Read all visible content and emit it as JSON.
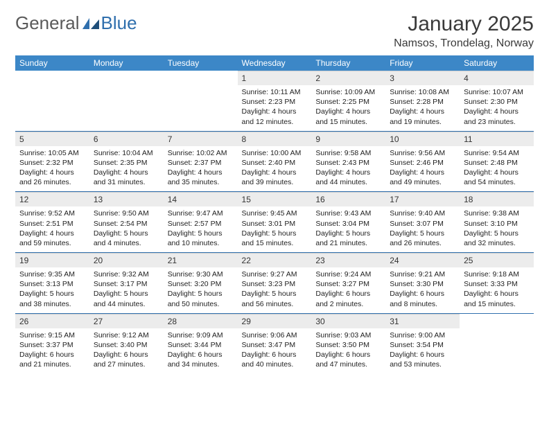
{
  "brand": {
    "word1": "General",
    "word2": "Blue"
  },
  "title": "January 2025",
  "location": "Namsos, Trondelag, Norway",
  "colors": {
    "header_bg": "#3c87c7",
    "header_text": "#ffffff",
    "rule": "#2f6fad",
    "daynum_bg": "#ececec",
    "text": "#333333"
  },
  "typography": {
    "title_fontsize": 30,
    "subtitle_fontsize": 16,
    "header_fontsize": 12,
    "cell_fontsize": 10.5
  },
  "week_header": [
    "Sunday",
    "Monday",
    "Tuesday",
    "Wednesday",
    "Thursday",
    "Friday",
    "Saturday"
  ],
  "weeks": [
    [
      {
        "empty": true
      },
      {
        "empty": true
      },
      {
        "empty": true
      },
      {
        "day": "1",
        "sunrise": "Sunrise: 10:11 AM",
        "sunset": "Sunset: 2:23 PM",
        "dl1": "Daylight: 4 hours",
        "dl2": "and 12 minutes."
      },
      {
        "day": "2",
        "sunrise": "Sunrise: 10:09 AM",
        "sunset": "Sunset: 2:25 PM",
        "dl1": "Daylight: 4 hours",
        "dl2": "and 15 minutes."
      },
      {
        "day": "3",
        "sunrise": "Sunrise: 10:08 AM",
        "sunset": "Sunset: 2:28 PM",
        "dl1": "Daylight: 4 hours",
        "dl2": "and 19 minutes."
      },
      {
        "day": "4",
        "sunrise": "Sunrise: 10:07 AM",
        "sunset": "Sunset: 2:30 PM",
        "dl1": "Daylight: 4 hours",
        "dl2": "and 23 minutes."
      }
    ],
    [
      {
        "day": "5",
        "sunrise": "Sunrise: 10:05 AM",
        "sunset": "Sunset: 2:32 PM",
        "dl1": "Daylight: 4 hours",
        "dl2": "and 26 minutes."
      },
      {
        "day": "6",
        "sunrise": "Sunrise: 10:04 AM",
        "sunset": "Sunset: 2:35 PM",
        "dl1": "Daylight: 4 hours",
        "dl2": "and 31 minutes."
      },
      {
        "day": "7",
        "sunrise": "Sunrise: 10:02 AM",
        "sunset": "Sunset: 2:37 PM",
        "dl1": "Daylight: 4 hours",
        "dl2": "and 35 minutes."
      },
      {
        "day": "8",
        "sunrise": "Sunrise: 10:00 AM",
        "sunset": "Sunset: 2:40 PM",
        "dl1": "Daylight: 4 hours",
        "dl2": "and 39 minutes."
      },
      {
        "day": "9",
        "sunrise": "Sunrise: 9:58 AM",
        "sunset": "Sunset: 2:43 PM",
        "dl1": "Daylight: 4 hours",
        "dl2": "and 44 minutes."
      },
      {
        "day": "10",
        "sunrise": "Sunrise: 9:56 AM",
        "sunset": "Sunset: 2:46 PM",
        "dl1": "Daylight: 4 hours",
        "dl2": "and 49 minutes."
      },
      {
        "day": "11",
        "sunrise": "Sunrise: 9:54 AM",
        "sunset": "Sunset: 2:48 PM",
        "dl1": "Daylight: 4 hours",
        "dl2": "and 54 minutes."
      }
    ],
    [
      {
        "day": "12",
        "sunrise": "Sunrise: 9:52 AM",
        "sunset": "Sunset: 2:51 PM",
        "dl1": "Daylight: 4 hours",
        "dl2": "and 59 minutes."
      },
      {
        "day": "13",
        "sunrise": "Sunrise: 9:50 AM",
        "sunset": "Sunset: 2:54 PM",
        "dl1": "Daylight: 5 hours",
        "dl2": "and 4 minutes."
      },
      {
        "day": "14",
        "sunrise": "Sunrise: 9:47 AM",
        "sunset": "Sunset: 2:57 PM",
        "dl1": "Daylight: 5 hours",
        "dl2": "and 10 minutes."
      },
      {
        "day": "15",
        "sunrise": "Sunrise: 9:45 AM",
        "sunset": "Sunset: 3:01 PM",
        "dl1": "Daylight: 5 hours",
        "dl2": "and 15 minutes."
      },
      {
        "day": "16",
        "sunrise": "Sunrise: 9:43 AM",
        "sunset": "Sunset: 3:04 PM",
        "dl1": "Daylight: 5 hours",
        "dl2": "and 21 minutes."
      },
      {
        "day": "17",
        "sunrise": "Sunrise: 9:40 AM",
        "sunset": "Sunset: 3:07 PM",
        "dl1": "Daylight: 5 hours",
        "dl2": "and 26 minutes."
      },
      {
        "day": "18",
        "sunrise": "Sunrise: 9:38 AM",
        "sunset": "Sunset: 3:10 PM",
        "dl1": "Daylight: 5 hours",
        "dl2": "and 32 minutes."
      }
    ],
    [
      {
        "day": "19",
        "sunrise": "Sunrise: 9:35 AM",
        "sunset": "Sunset: 3:13 PM",
        "dl1": "Daylight: 5 hours",
        "dl2": "and 38 minutes."
      },
      {
        "day": "20",
        "sunrise": "Sunrise: 9:32 AM",
        "sunset": "Sunset: 3:17 PM",
        "dl1": "Daylight: 5 hours",
        "dl2": "and 44 minutes."
      },
      {
        "day": "21",
        "sunrise": "Sunrise: 9:30 AM",
        "sunset": "Sunset: 3:20 PM",
        "dl1": "Daylight: 5 hours",
        "dl2": "and 50 minutes."
      },
      {
        "day": "22",
        "sunrise": "Sunrise: 9:27 AM",
        "sunset": "Sunset: 3:23 PM",
        "dl1": "Daylight: 5 hours",
        "dl2": "and 56 minutes."
      },
      {
        "day": "23",
        "sunrise": "Sunrise: 9:24 AM",
        "sunset": "Sunset: 3:27 PM",
        "dl1": "Daylight: 6 hours",
        "dl2": "and 2 minutes."
      },
      {
        "day": "24",
        "sunrise": "Sunrise: 9:21 AM",
        "sunset": "Sunset: 3:30 PM",
        "dl1": "Daylight: 6 hours",
        "dl2": "and 8 minutes."
      },
      {
        "day": "25",
        "sunrise": "Sunrise: 9:18 AM",
        "sunset": "Sunset: 3:33 PM",
        "dl1": "Daylight: 6 hours",
        "dl2": "and 15 minutes."
      }
    ],
    [
      {
        "day": "26",
        "sunrise": "Sunrise: 9:15 AM",
        "sunset": "Sunset: 3:37 PM",
        "dl1": "Daylight: 6 hours",
        "dl2": "and 21 minutes."
      },
      {
        "day": "27",
        "sunrise": "Sunrise: 9:12 AM",
        "sunset": "Sunset: 3:40 PM",
        "dl1": "Daylight: 6 hours",
        "dl2": "and 27 minutes."
      },
      {
        "day": "28",
        "sunrise": "Sunrise: 9:09 AM",
        "sunset": "Sunset: 3:44 PM",
        "dl1": "Daylight: 6 hours",
        "dl2": "and 34 minutes."
      },
      {
        "day": "29",
        "sunrise": "Sunrise: 9:06 AM",
        "sunset": "Sunset: 3:47 PM",
        "dl1": "Daylight: 6 hours",
        "dl2": "and 40 minutes."
      },
      {
        "day": "30",
        "sunrise": "Sunrise: 9:03 AM",
        "sunset": "Sunset: 3:50 PM",
        "dl1": "Daylight: 6 hours",
        "dl2": "and 47 minutes."
      },
      {
        "day": "31",
        "sunrise": "Sunrise: 9:00 AM",
        "sunset": "Sunset: 3:54 PM",
        "dl1": "Daylight: 6 hours",
        "dl2": "and 53 minutes."
      },
      {
        "empty": true
      }
    ]
  ]
}
